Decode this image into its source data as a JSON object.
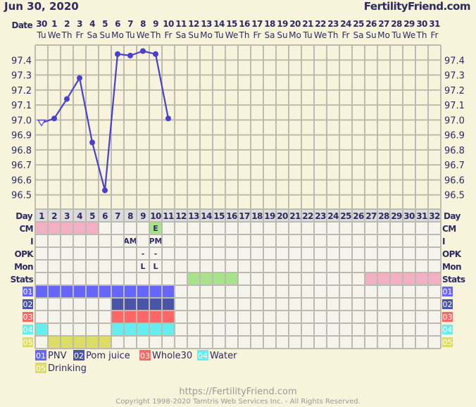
{
  "header": {
    "date": "Jun 30, 2020",
    "brand": "FertilityFriend.com"
  },
  "date_label": "Date",
  "day_label": "Day",
  "dates": [
    "30",
    "1",
    "2",
    "3",
    "4",
    "5",
    "6",
    "7",
    "8",
    "9",
    "10",
    "11",
    "12",
    "13",
    "14",
    "15",
    "16",
    "17",
    "18",
    "19",
    "20",
    "21",
    "22",
    "23",
    "24",
    "25",
    "26",
    "27",
    "28",
    "29",
    "30",
    "31"
  ],
  "weekdays": [
    "Tu",
    "We",
    "Th",
    "Fr",
    "Sa",
    "Su",
    "Mo",
    "Tu",
    "We",
    "Th",
    "Fr",
    "Sa",
    "Su",
    "Mo",
    "Tu",
    "We",
    "Th",
    "Fr",
    "Sa",
    "Su",
    "Mo",
    "Tu",
    "We",
    "Th",
    "Fr",
    "Sa",
    "Su",
    "Mo",
    "Tu",
    "We",
    "Th",
    "Fr"
  ],
  "cycle_days": [
    "1",
    "2",
    "3",
    "4",
    "5",
    "6",
    "7",
    "8",
    "9",
    "10",
    "11",
    "12",
    "13",
    "14",
    "15",
    "16",
    "17",
    "18",
    "19",
    "20",
    "21",
    "22",
    "23",
    "24",
    "25",
    "26",
    "27",
    "28",
    "29",
    "30",
    "31",
    "32"
  ],
  "chart_data": {
    "type": "line",
    "xlabel": "Day",
    "x": [
      1,
      2,
      3,
      4,
      5,
      6,
      7,
      8,
      9,
      10,
      11
    ],
    "y": [
      96.98,
      97.01,
      97.14,
      97.28,
      96.85,
      96.53,
      97.44,
      97.43,
      97.46,
      97.44,
      97.01
    ],
    "markers": [
      "open-triangle",
      "dot",
      "dot",
      "dot",
      "dot",
      "dot",
      "dot",
      "dot",
      "dot",
      "dot",
      "dot"
    ],
    "ylim": [
      96.4,
      97.5
    ],
    "yticks": [
      "97.4",
      "97.3",
      "97.2",
      "97.1",
      "97.0",
      "96.9",
      "96.8",
      "96.7",
      "96.6",
      "96.5"
    ],
    "xlim": [
      1,
      32
    ],
    "grid": true,
    "line_color": "#4a3fd0"
  },
  "rows": [
    {
      "label": "CM",
      "cells": [
        {
          "day": 1,
          "color": "#f2b0c4"
        },
        {
          "day": 2,
          "color": "#f2b0c4"
        },
        {
          "day": 3,
          "color": "#f2b0c4"
        },
        {
          "day": 4,
          "color": "#f2b0c4"
        },
        {
          "day": 5,
          "color": "#f2b0c4"
        },
        {
          "day": 10,
          "color": "#a6e38a",
          "text": "E"
        }
      ]
    },
    {
      "label": "I",
      "cells": [
        {
          "day": 8,
          "text": "AM"
        },
        {
          "day": 10,
          "text": "PM"
        }
      ]
    },
    {
      "label": "OPK",
      "cells": [
        {
          "day": 9,
          "text": "-"
        },
        {
          "day": 10,
          "text": "-"
        }
      ]
    },
    {
      "label": "Mon",
      "cells": [
        {
          "day": 9,
          "text": "L"
        },
        {
          "day": 10,
          "text": "L"
        }
      ]
    },
    {
      "label": "Stats",
      "cells": [
        {
          "day": 13,
          "color": "#a6e38a"
        },
        {
          "day": 14,
          "color": "#a6e38a"
        },
        {
          "day": 15,
          "color": "#a6e38a"
        },
        {
          "day": 16,
          "color": "#a6e38a"
        },
        {
          "day": 27,
          "color": "#f2b0c4"
        },
        {
          "day": 28,
          "color": "#f2b0c4"
        },
        {
          "day": 29,
          "color": "#f2b0c4"
        },
        {
          "day": 30,
          "color": "#f2b0c4"
        },
        {
          "day": 31,
          "color": "#f2b0c4"
        },
        {
          "day": 32,
          "color": "#f2b0c4"
        }
      ]
    }
  ],
  "custom": [
    {
      "code": "01",
      "name": "PNV",
      "color": "#6666ff",
      "text_color": "#ffffff",
      "days": [
        1,
        2,
        3,
        4,
        5,
        6,
        7,
        8,
        9,
        10,
        11
      ]
    },
    {
      "code": "02",
      "name": "Pom juice",
      "color": "#4a55a8",
      "text_color": "#ffffff",
      "days": [
        7,
        8,
        9,
        10,
        11
      ]
    },
    {
      "code": "03",
      "name": "Whole30",
      "color": "#ff6666",
      "text_color": "#ffffff",
      "days": [
        7,
        8,
        9,
        10,
        11
      ]
    },
    {
      "code": "04",
      "name": "Water",
      "color": "#66eeee",
      "text_color": "#333333",
      "days": [
        1,
        7,
        8,
        9,
        10,
        11
      ]
    },
    {
      "code": "05",
      "name": "Drinking",
      "color": "#dddd66",
      "text_color": "#333333",
      "days": [
        2,
        3,
        4,
        5,
        6
      ]
    }
  ],
  "footer": {
    "url": "https://FertilityFriend.com",
    "copyright": "Copyright 1998-2020 Tamtris Web Services Inc. - All Rights Reserved."
  }
}
